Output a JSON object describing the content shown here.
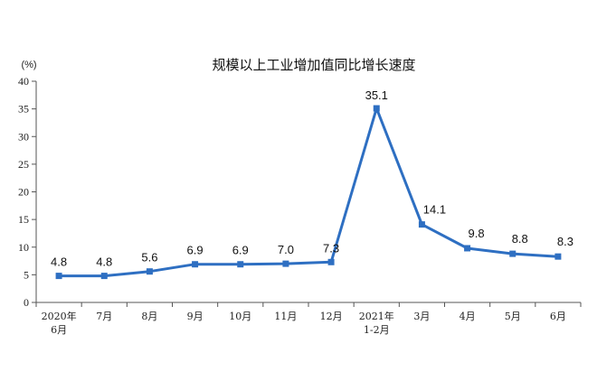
{
  "chart_data": {
    "type": "line",
    "title": "规模以上工业增加值同比增长速度",
    "ylabel": "(%)",
    "xlabel": "",
    "ylim": [
      0,
      40
    ],
    "yticks": [
      0,
      5,
      10,
      15,
      20,
      25,
      30,
      35,
      40
    ],
    "categories": [
      [
        "2020年",
        "6月"
      ],
      [
        "7月"
      ],
      [
        "8月"
      ],
      [
        "9月"
      ],
      [
        "10月"
      ],
      [
        "11月"
      ],
      [
        "12月"
      ],
      [
        "2021年",
        "1-2月"
      ],
      [
        "3月"
      ],
      [
        "4月"
      ],
      [
        "5月"
      ],
      [
        "6月"
      ]
    ],
    "values": [
      4.8,
      4.8,
      5.6,
      6.9,
      6.9,
      7.0,
      7.3,
      35.1,
      14.1,
      9.8,
      8.8,
      8.3
    ],
    "data_labels": [
      "4.8",
      "4.8",
      "5.6",
      "6.9",
      "6.9",
      "7.0",
      "7.3",
      "35.1",
      "14.1",
      "9.8",
      "8.8",
      "8.3"
    ],
    "grid": false,
    "line_color": "#2e6fc2",
    "axis_color": "#555555"
  }
}
